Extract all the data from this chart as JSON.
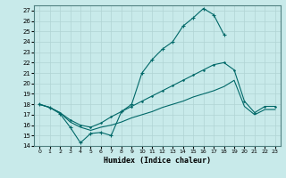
{
  "background_color": "#c8eaea",
  "grid_color": "#b0d4d4",
  "line_color": "#006868",
  "xlabel": "Humidex (Indice chaleur)",
  "xlim": [
    -0.5,
    23.5
  ],
  "ylim": [
    14,
    27.5
  ],
  "yticks": [
    14,
    15,
    16,
    17,
    18,
    19,
    20,
    21,
    22,
    23,
    24,
    25,
    26,
    27
  ],
  "xticks": [
    0,
    1,
    2,
    3,
    4,
    5,
    6,
    7,
    8,
    9,
    10,
    11,
    12,
    13,
    14,
    15,
    16,
    17,
    18,
    19,
    20,
    21,
    22,
    23
  ],
  "line1_x": [
    0,
    1,
    2,
    3,
    4,
    5,
    6,
    7,
    8,
    9,
    10,
    11,
    12,
    13,
    14,
    15,
    16,
    17,
    18,
    19,
    20,
    21,
    22,
    23
  ],
  "line1_y": [
    18.0,
    17.7,
    17.1,
    15.8,
    14.3,
    15.2,
    15.3,
    15.0,
    17.3,
    18.0,
    21.0,
    22.3,
    23.3,
    24.0,
    25.5,
    26.3,
    27.2,
    26.6,
    24.7,
    null,
    null,
    null,
    null,
    null
  ],
  "line2_x": [
    0,
    1,
    2,
    3,
    4,
    5,
    6,
    7,
    8,
    9,
    10,
    11,
    12,
    13,
    14,
    15,
    16,
    17,
    18,
    19,
    20,
    21,
    22,
    23
  ],
  "line2_y": [
    18.0,
    17.7,
    17.2,
    16.5,
    16.0,
    15.8,
    16.2,
    16.8,
    17.3,
    17.8,
    18.3,
    18.8,
    19.3,
    19.8,
    20.3,
    20.8,
    21.3,
    21.8,
    22.0,
    21.3,
    18.3,
    17.2,
    17.8,
    17.8
  ],
  "line3_x": [
    0,
    1,
    2,
    3,
    4,
    5,
    6,
    7,
    8,
    9,
    10,
    11,
    12,
    13,
    14,
    15,
    16,
    17,
    18,
    19,
    20,
    21,
    22,
    23
  ],
  "line3_y": [
    18.0,
    17.7,
    17.2,
    16.3,
    15.8,
    15.5,
    15.8,
    16.0,
    16.3,
    16.7,
    17.0,
    17.3,
    17.7,
    18.0,
    18.3,
    18.7,
    19.0,
    19.3,
    19.7,
    20.3,
    17.8,
    17.0,
    17.5,
    17.5
  ]
}
